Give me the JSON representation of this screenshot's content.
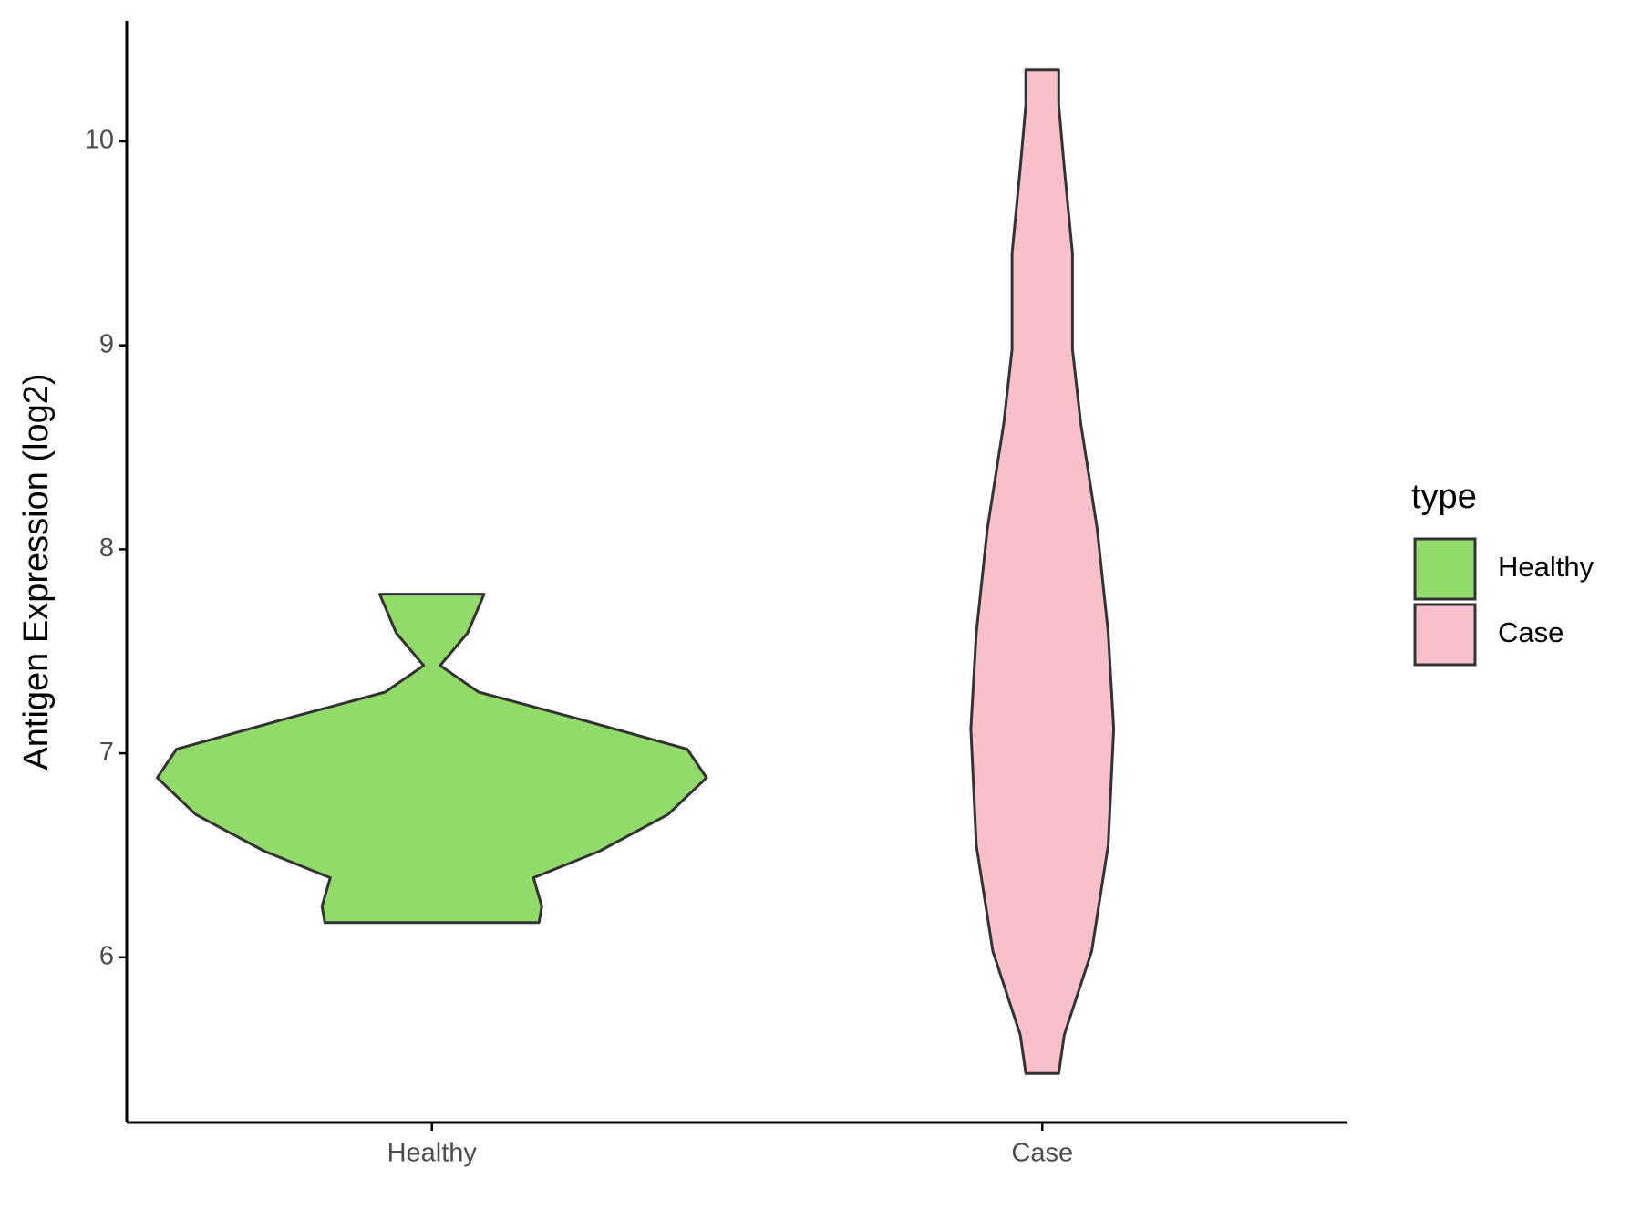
{
  "chart_data": {
    "type": "violin",
    "y_label": "Antigen Expression (log2)",
    "categories": [
      "Healthy",
      "Case"
    ],
    "legend_title": "type",
    "legend_position": "right",
    "ylim": [
      5.19,
      10.59
    ],
    "yticks": [
      6,
      7,
      8,
      9,
      10
    ],
    "series": [
      {
        "name": "Healthy",
        "color": "#92db6a",
        "y": [
          6.17,
          6.25,
          6.39,
          6.52,
          6.7,
          6.88,
          7.02,
          7.17,
          7.3,
          7.43,
          7.59,
          7.78
        ],
        "density": [
          0.39,
          0.4,
          0.37,
          0.61,
          0.86,
          1.0,
          0.93,
          0.53,
          0.17,
          0.03,
          0.13,
          0.19
        ]
      },
      {
        "name": "Case",
        "color": "#f7c0ca",
        "y": [
          5.43,
          5.62,
          6.03,
          6.55,
          7.12,
          7.59,
          8.1,
          8.62,
          8.98,
          9.45,
          9.87,
          10.18,
          10.35
        ],
        "density": [
          0.06,
          0.08,
          0.18,
          0.24,
          0.26,
          0.24,
          0.2,
          0.14,
          0.11,
          0.11,
          0.08,
          0.06,
          0.06
        ]
      }
    ]
  }
}
